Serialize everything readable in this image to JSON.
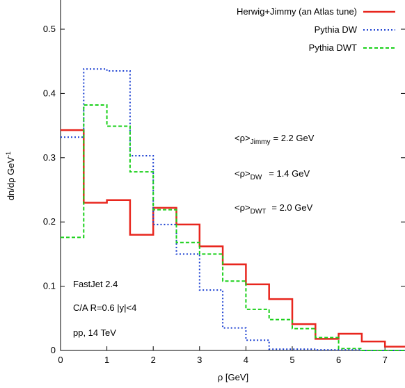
{
  "chart_data": {
    "type": "line",
    "step": true,
    "xlabel": "ρ [GeV]",
    "ylabel": "dn/dρ GeV",
    "ylabel_sup": "-1",
    "xlim": [
      0,
      7.4
    ],
    "ylim": [
      0,
      0.55
    ],
    "xticks": [
      0,
      1,
      2,
      3,
      4,
      5,
      6,
      7
    ],
    "yticks": [
      0,
      0.1,
      0.2,
      0.3,
      0.4,
      0.5
    ],
    "xtick_labels": [
      "0",
      "1",
      "2",
      "3",
      "4",
      "5",
      "6",
      "7"
    ],
    "ytick_labels": [
      "0",
      "0.1",
      "0.2",
      "0.3",
      "0.4",
      "0.5"
    ],
    "grid": false,
    "legend_position": "top-right",
    "bin_edges": [
      0,
      0.5,
      1,
      1.5,
      2,
      2.5,
      3,
      3.5,
      4,
      4.5,
      5,
      5.5,
      6,
      6.5,
      7,
      7.5
    ],
    "series": [
      {
        "name": "Herwig+Jimmy (an Atlas tune)",
        "color": "#e8261e",
        "style": "solid",
        "values": [
          0.343,
          0.23,
          0.234,
          0.18,
          0.222,
          0.196,
          0.162,
          0.134,
          0.103,
          0.08,
          0.041,
          0.018,
          0.026,
          0.014,
          0.006
        ]
      },
      {
        "name": "Pythia DW",
        "color": "#1a3fd1",
        "style": "dotted",
        "values": [
          0.332,
          0.438,
          0.435,
          0.303,
          0.196,
          0.15,
          0.094,
          0.035,
          0.016,
          0.002,
          0.002,
          0.001,
          0.001,
          0.0,
          0.0
        ]
      },
      {
        "name": "Pythia DWT",
        "color": "#1ad01a",
        "style": "dashed",
        "values": [
          0.176,
          0.382,
          0.349,
          0.278,
          0.219,
          0.168,
          0.15,
          0.108,
          0.064,
          0.048,
          0.034,
          0.02,
          0.003,
          0.0,
          0.0
        ]
      }
    ],
    "annotations_right": [
      {
        "main": "<ρ>",
        "sub": "Jimmy",
        "value": "= 2.2 GeV"
      },
      {
        "main": "<ρ>",
        "sub": "DW",
        "value": "= 1.4 GeV"
      },
      {
        "main": "<ρ>",
        "sub": "DWT",
        "value": "= 2.0 GeV"
      }
    ],
    "annotations_left": [
      "FastJet 2.4",
      "C/A R=0.6 |y|<4",
      "pp, 14 TeV"
    ]
  }
}
